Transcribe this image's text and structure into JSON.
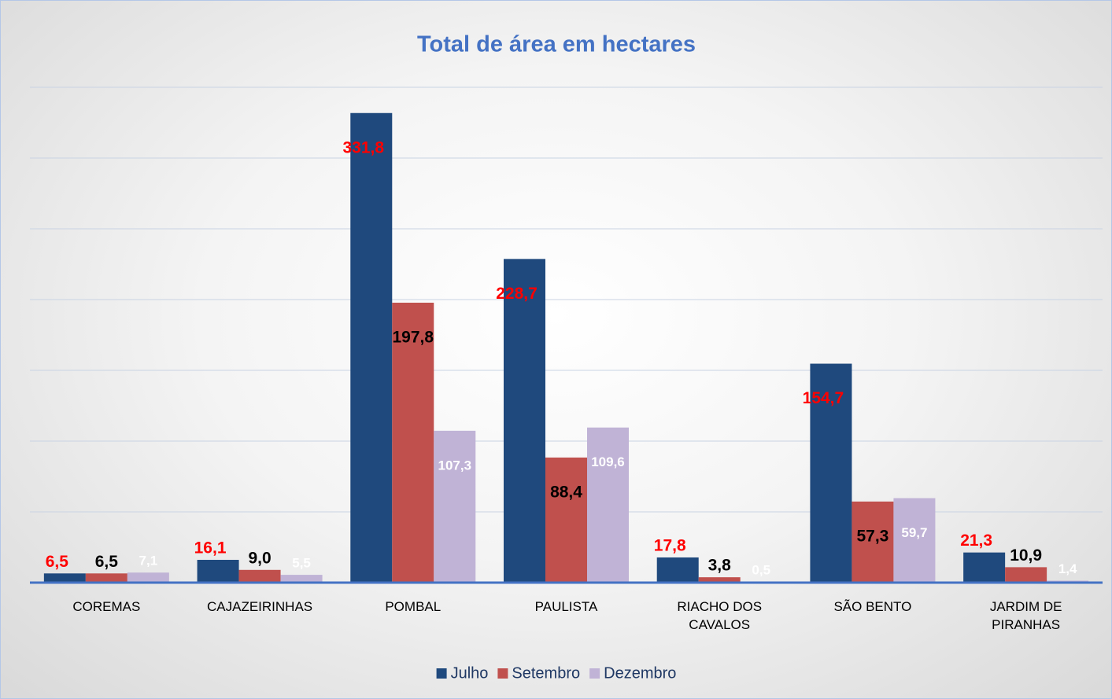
{
  "chart_data": {
    "type": "bar",
    "title": "Total de área em hectares",
    "categories": [
      "COREMAS",
      "CAJAZEIRINHAS",
      "POMBAL",
      "PAULISTA",
      "RIACHO DOS CAVALOS",
      "SÃO BENTO",
      "JARDIM DE PIRANHAS"
    ],
    "series": [
      {
        "name": "Julho",
        "color": "#1f497d",
        "label_color": "#ff0000",
        "values": [
          6.5,
          16.1,
          331.8,
          228.7,
          17.8,
          154.7,
          21.3
        ],
        "value_labels": [
          "6,5",
          "16,1",
          "331,8",
          "228,7",
          "17,8",
          "154,7",
          "21,3"
        ]
      },
      {
        "name": "Setembro",
        "color": "#c0504d",
        "label_color": "#000000",
        "values": [
          6.5,
          9.0,
          197.8,
          88.4,
          3.8,
          57.3,
          10.9
        ],
        "value_labels": [
          "6,5",
          "9,0",
          "197,8",
          "88,4",
          "3,8",
          "57,3",
          "10,9"
        ]
      },
      {
        "name": "Dezembro",
        "color": "#c0b3d6",
        "label_color": "#ffffff",
        "values": [
          7.1,
          5.5,
          107.3,
          109.6,
          0.5,
          59.7,
          1.4
        ],
        "value_labels": [
          "7,1",
          "5,5",
          "107,3",
          "109,6",
          "0,5",
          "59,7",
          "1,4"
        ]
      }
    ],
    "ylim": [
      0,
      350
    ],
    "yticks": [
      0,
      50,
      100,
      150,
      200,
      250,
      300,
      350
    ],
    "grid": true,
    "legend": "bottom"
  }
}
